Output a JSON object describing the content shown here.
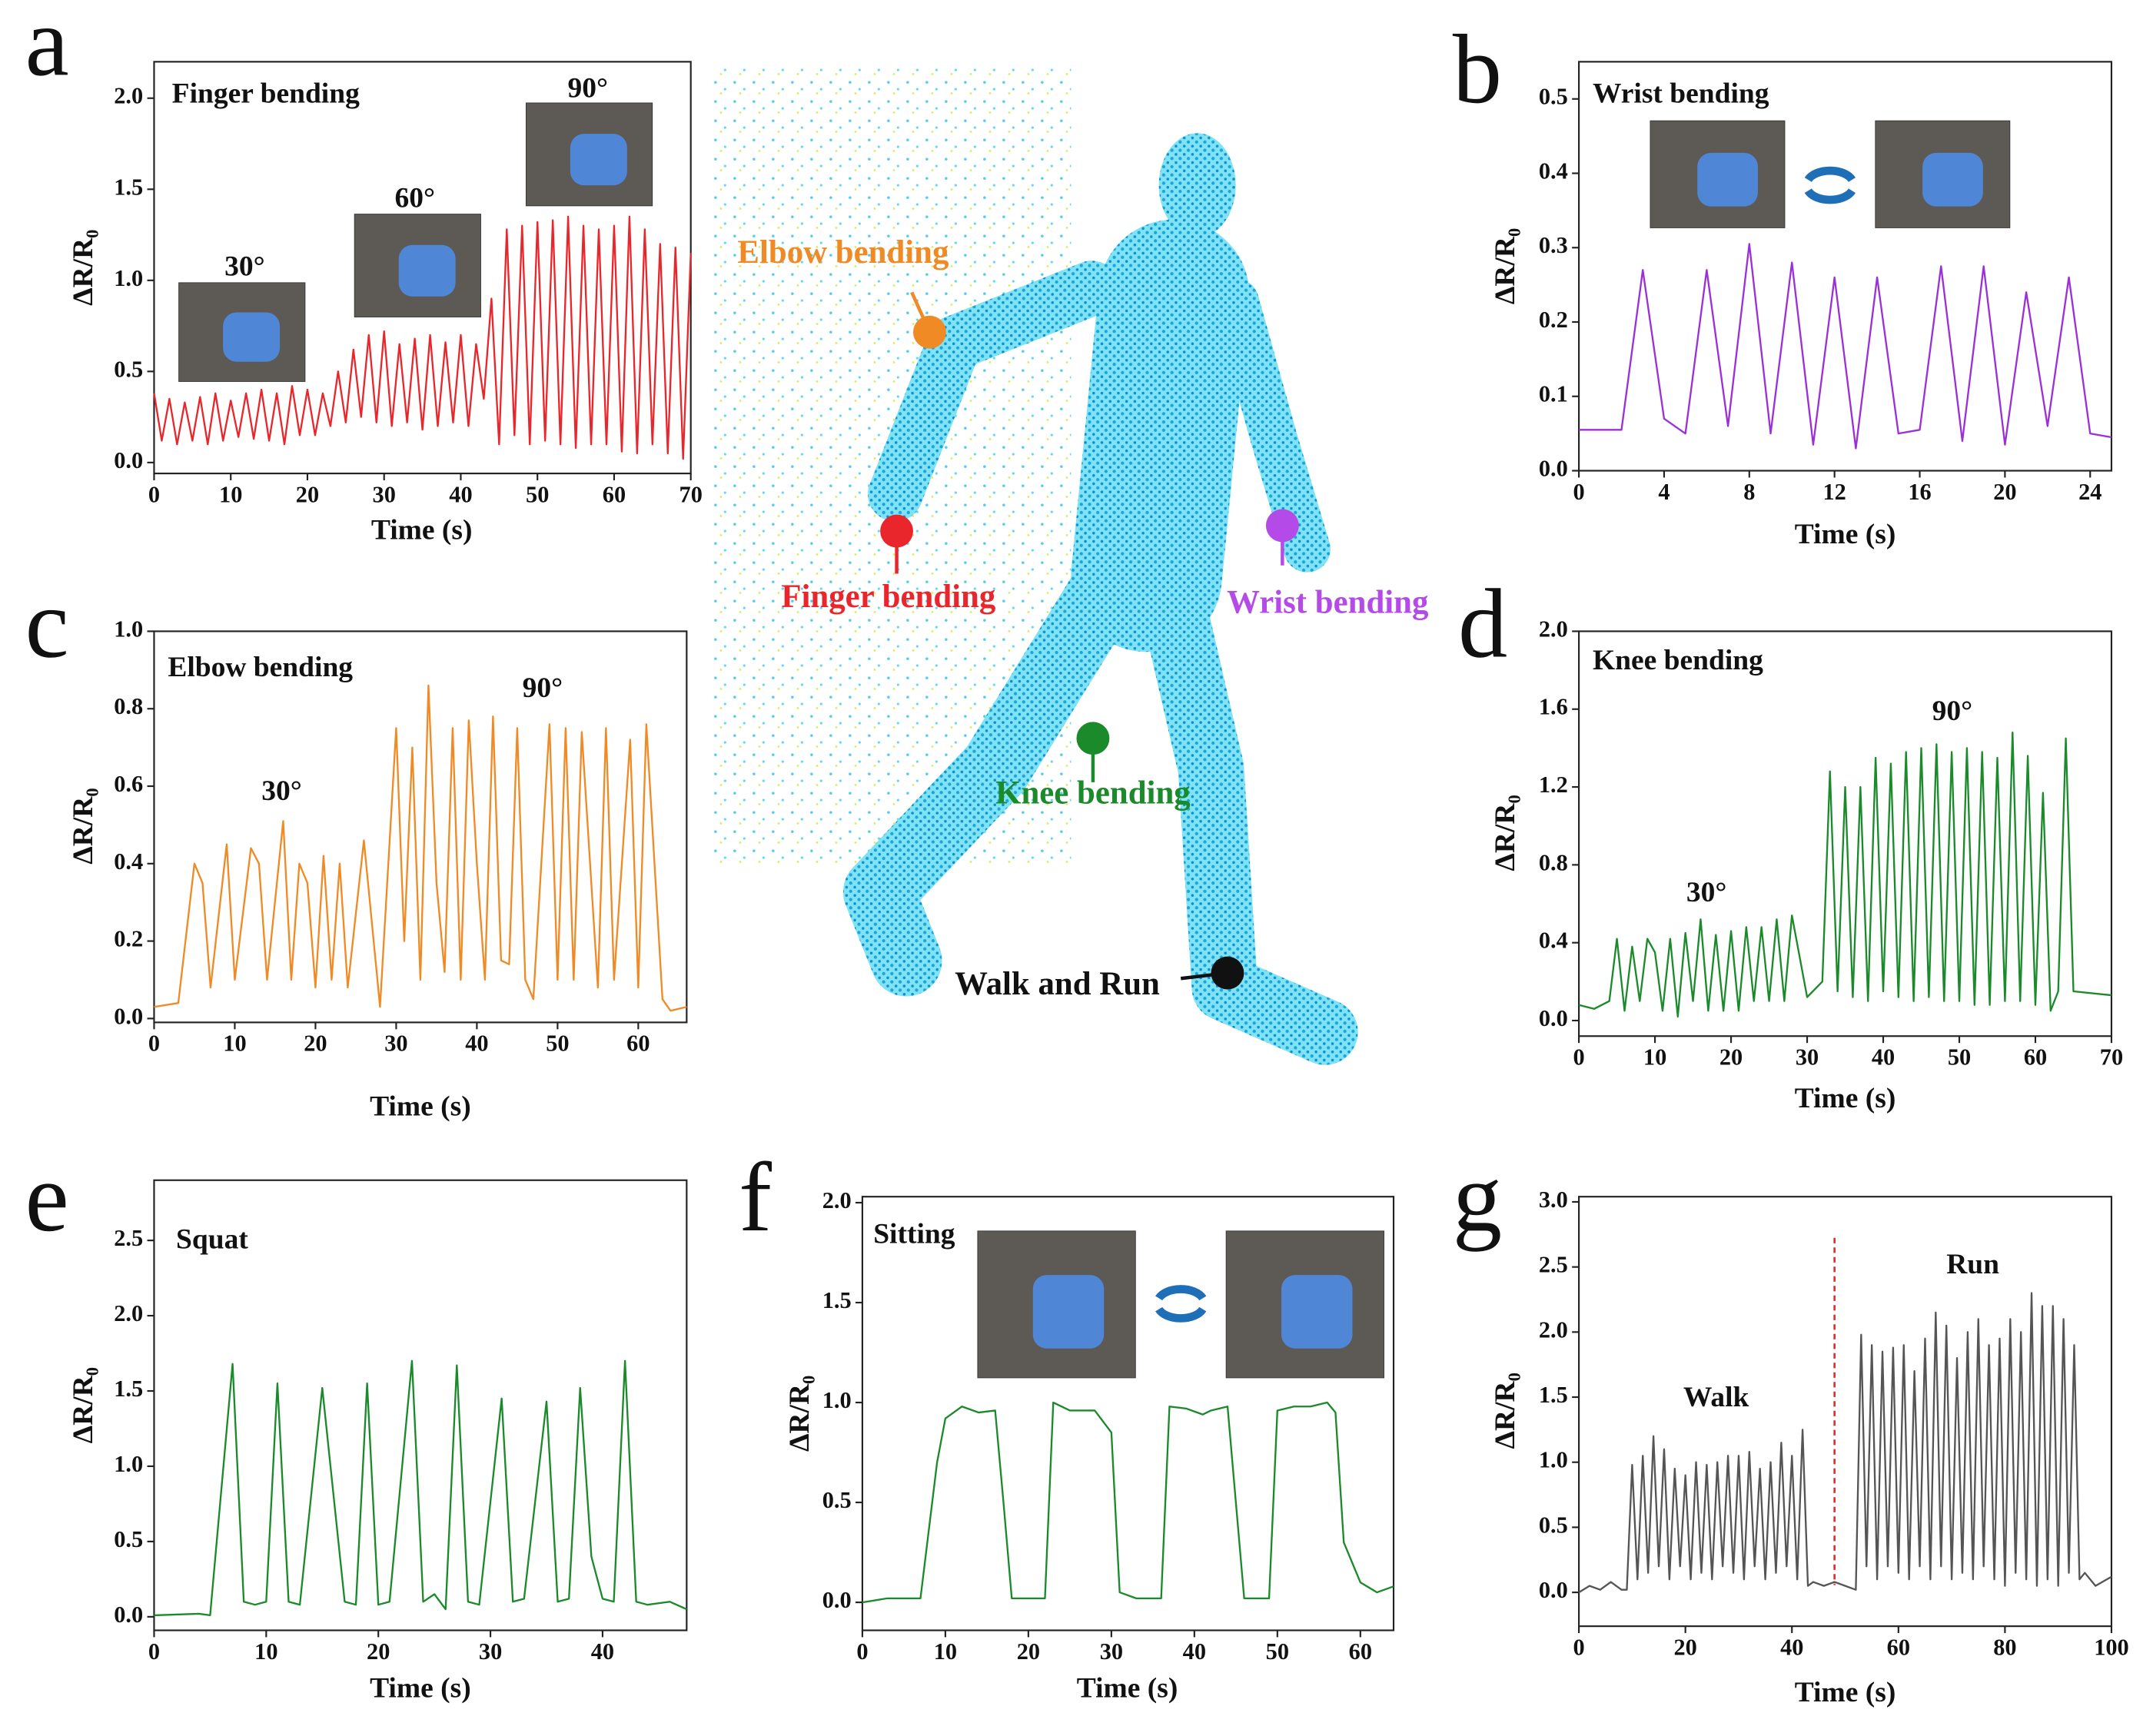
{
  "chart_data": [
    {
      "type": "line",
      "panel": "a",
      "title": "Finger bending",
      "annotations": [
        "30°",
        "60°",
        "90°"
      ],
      "x_label": "Time (s)",
      "y_label": "ΔR/R₀",
      "color": "#e8262b",
      "x": [
        0,
        1,
        2,
        3,
        4,
        5,
        6,
        7,
        8,
        9,
        10,
        11,
        12,
        13,
        14,
        15,
        16,
        17,
        18,
        19,
        20,
        21,
        22,
        23,
        24,
        25,
        26,
        27,
        28,
        29,
        30,
        31,
        32,
        33,
        34,
        35,
        36,
        37,
        38,
        39,
        40,
        41,
        42,
        43,
        44,
        45,
        46,
        47,
        48,
        49,
        50,
        51,
        52,
        53,
        54,
        55,
        56,
        57,
        58,
        59,
        60,
        61,
        62,
        63,
        64,
        65,
        66,
        67,
        68,
        69,
        70
      ],
      "values": [
        0.38,
        0.12,
        0.35,
        0.1,
        0.33,
        0.12,
        0.36,
        0.1,
        0.38,
        0.12,
        0.34,
        0.14,
        0.38,
        0.13,
        0.4,
        0.12,
        0.38,
        0.1,
        0.42,
        0.15,
        0.4,
        0.15,
        0.38,
        0.2,
        0.5,
        0.22,
        0.62,
        0.25,
        0.7,
        0.22,
        0.72,
        0.2,
        0.65,
        0.22,
        0.68,
        0.18,
        0.7,
        0.2,
        0.66,
        0.22,
        0.7,
        0.2,
        0.65,
        0.35,
        0.9,
        0.1,
        1.28,
        0.15,
        1.3,
        0.1,
        1.32,
        0.12,
        1.33,
        0.1,
        1.35,
        0.08,
        1.3,
        0.1,
        1.28,
        0.1,
        1.3,
        0.06,
        1.35,
        0.05,
        1.28,
        0.1,
        1.2,
        0.05,
        1.18,
        0.02,
        1.15
      ],
      "xlim": [
        0,
        70
      ],
      "ylim": [
        -0.06,
        2.2
      ],
      "xticks": [
        0,
        10,
        20,
        30,
        40,
        50,
        60,
        70
      ],
      "yticks": [
        {
          "value": 0,
          "label": "0.0"
        },
        0.5,
        {
          "value": 1,
          "label": "1.0"
        },
        1.5,
        {
          "value": 2,
          "label": "2.0"
        }
      ]
    },
    {
      "type": "line",
      "panel": "b",
      "title": "Wrist bending",
      "annotations": [],
      "x_label": "Time (s)",
      "y_label": "ΔR/R₀",
      "color": "#9b30d9",
      "x": [
        0,
        2,
        3,
        4,
        5,
        6,
        7,
        8,
        9,
        10,
        11,
        12,
        13,
        14,
        15,
        16,
        17,
        18,
        19,
        20,
        21,
        22,
        23,
        24,
        25
      ],
      "values": [
        0.055,
        0.055,
        0.27,
        0.07,
        0.05,
        0.27,
        0.06,
        0.305,
        0.05,
        0.28,
        0.035,
        0.26,
        0.03,
        0.26,
        0.05,
        0.055,
        0.275,
        0.04,
        0.275,
        0.035,
        0.24,
        0.06,
        0.26,
        0.05,
        0.045
      ],
      "xlim": [
        0,
        25
      ],
      "ylim": [
        0,
        0.55
      ],
      "xticks": [
        0,
        4,
        8,
        12,
        16,
        20,
        24
      ],
      "yticks": [
        {
          "value": 0,
          "label": "0.0"
        },
        0.1,
        0.2,
        0.3,
        0.4,
        0.5
      ]
    },
    {
      "type": "line",
      "panel": "c",
      "title": "Elbow bending",
      "annotations": [
        "30°",
        "90°"
      ],
      "x_label": "Time (s)",
      "y_label": "ΔR/R₀",
      "color": "#f08a24",
      "x": [
        0,
        3,
        5,
        6,
        7,
        9,
        10,
        12,
        13,
        14,
        16,
        17,
        18,
        19,
        20,
        21,
        22,
        23,
        24,
        26,
        28,
        30,
        31,
        32,
        33,
        34,
        35,
        36,
        37,
        38,
        39,
        40,
        41,
        42,
        43,
        44,
        45,
        46,
        47,
        49,
        50,
        51,
        52,
        53,
        55,
        56,
        57,
        59,
        60,
        61,
        63,
        64,
        66
      ],
      "values": [
        0.03,
        0.04,
        0.4,
        0.35,
        0.08,
        0.45,
        0.1,
        0.44,
        0.4,
        0.1,
        0.51,
        0.1,
        0.4,
        0.35,
        0.08,
        0.42,
        0.1,
        0.4,
        0.08,
        0.46,
        0.03,
        0.75,
        0.2,
        0.7,
        0.1,
        0.86,
        0.35,
        0.12,
        0.75,
        0.1,
        0.77,
        0.4,
        0.1,
        0.78,
        0.15,
        0.14,
        0.75,
        0.1,
        0.05,
        0.76,
        0.1,
        0.75,
        0.1,
        0.74,
        0.08,
        0.75,
        0.1,
        0.72,
        0.08,
        0.76,
        0.05,
        0.02,
        0.03
      ],
      "xlim": [
        0,
        66
      ],
      "ylim": [
        -0.01,
        1.0
      ],
      "xticks": [
        0,
        10,
        20,
        30,
        40,
        50,
        60
      ],
      "yticks": [
        {
          "value": 0,
          "label": "0.0"
        },
        0.2,
        0.4,
        0.6,
        0.8,
        {
          "value": 1,
          "label": "1.0"
        }
      ]
    },
    {
      "type": "line",
      "panel": "d",
      "title": "Knee bending",
      "annotations": [
        "30°",
        "90°"
      ],
      "x_label": "Time (s)",
      "y_label": "ΔR/R₀",
      "color": "#1a8a2a",
      "x": [
        0,
        2,
        4,
        5,
        6,
        7,
        8,
        9,
        10,
        11,
        12,
        13,
        14,
        15,
        16,
        17,
        18,
        19,
        20,
        21,
        22,
        23,
        24,
        25,
        26,
        27,
        28,
        30,
        32,
        33,
        34,
        35,
        36,
        37,
        38,
        39,
        40,
        41,
        42,
        43,
        44,
        45,
        46,
        47,
        48,
        49,
        50,
        51,
        52,
        53,
        54,
        55,
        56,
        57,
        58,
        59,
        60,
        61,
        62,
        63,
        64,
        65,
        70
      ],
      "values": [
        0.08,
        0.06,
        0.1,
        0.42,
        0.05,
        0.38,
        0.1,
        0.42,
        0.35,
        0.05,
        0.42,
        0.02,
        0.45,
        0.1,
        0.52,
        0.05,
        0.44,
        0.05,
        0.46,
        0.05,
        0.48,
        0.1,
        0.48,
        0.1,
        0.52,
        0.1,
        0.54,
        0.12,
        0.2,
        1.28,
        0.15,
        1.2,
        0.12,
        1.2,
        0.1,
        1.35,
        0.15,
        1.32,
        0.12,
        1.38,
        0.1,
        1.4,
        0.12,
        1.42,
        0.1,
        1.38,
        0.1,
        1.4,
        0.08,
        1.38,
        0.08,
        1.35,
        0.1,
        1.48,
        0.1,
        1.36,
        0.08,
        1.17,
        0.05,
        0.15,
        1.45,
        0.15,
        0.13
      ],
      "xlim": [
        0,
        70
      ],
      "ylim": [
        -0.08,
        2.0
      ],
      "xticks": [
        0,
        10,
        20,
        30,
        40,
        50,
        60,
        70
      ],
      "yticks": [
        {
          "value": 0,
          "label": "0.0"
        },
        0.4,
        0.8,
        1.2,
        1.6,
        {
          "value": 2,
          "label": "2.0"
        }
      ]
    },
    {
      "type": "line",
      "panel": "e",
      "title": "Squat",
      "annotations": [],
      "x_label": "Time (s)",
      "y_label": "ΔR/R₀",
      "color": "#1a8a2a",
      "x": [
        0,
        4,
        5,
        7,
        8,
        9,
        10,
        11,
        12,
        13,
        15,
        17,
        18,
        19,
        20,
        21,
        23,
        24,
        25,
        26,
        27,
        28,
        29,
        31,
        32,
        33,
        35,
        36,
        37,
        38,
        39,
        40,
        41,
        42,
        43,
        44,
        46,
        47.5
      ],
      "values": [
        0.01,
        0.02,
        0.01,
        1.68,
        0.1,
        0.08,
        0.1,
        1.55,
        0.1,
        0.08,
        1.52,
        0.1,
        0.08,
        1.55,
        0.08,
        0.1,
        1.7,
        0.1,
        0.15,
        0.05,
        1.67,
        0.1,
        0.08,
        1.45,
        0.1,
        0.12,
        1.43,
        0.1,
        0.12,
        1.52,
        0.4,
        0.12,
        0.1,
        1.7,
        0.1,
        0.08,
        0.1,
        0.05
      ],
      "xlim": [
        0,
        47.5
      ],
      "ylim": [
        -0.09,
        2.9
      ],
      "xticks": [
        0,
        10,
        20,
        30,
        40
      ],
      "yticks": [
        {
          "value": 0,
          "label": "0.0"
        },
        0.5,
        {
          "value": 1,
          "label": "1.0"
        },
        1.5,
        {
          "value": 2,
          "label": "2.0"
        },
        2.5
      ]
    },
    {
      "type": "line",
      "panel": "f",
      "title": "Sitting",
      "annotations": [],
      "x_label": "Time (s)",
      "y_label": "ΔR/R₀",
      "color": "#1a8a2a",
      "x": [
        0,
        3,
        7,
        9,
        10,
        12,
        14,
        16,
        17,
        18,
        20,
        22,
        23,
        25,
        28,
        30,
        31,
        33,
        36,
        37,
        39,
        41,
        42,
        44,
        45,
        46,
        49,
        50,
        52,
        54,
        56,
        57,
        58,
        60,
        62,
        64
      ],
      "values": [
        0,
        0.02,
        0.02,
        0.7,
        0.92,
        0.98,
        0.95,
        0.96,
        0.5,
        0.02,
        0.02,
        0.02,
        1.0,
        0.96,
        0.96,
        0.85,
        0.05,
        0.02,
        0.02,
        0.98,
        0.97,
        0.94,
        0.96,
        0.98,
        0.5,
        0.02,
        0.02,
        0.96,
        0.98,
        0.98,
        1.0,
        0.95,
        0.3,
        0.1,
        0.05,
        0.08
      ],
      "xlim": [
        0,
        64
      ],
      "ylim": [
        -0.14,
        2.03
      ],
      "xticks": [
        0,
        10,
        20,
        30,
        40,
        50,
        60
      ],
      "yticks": [
        {
          "value": 0,
          "label": "0.0"
        },
        0.5,
        {
          "value": 1,
          "label": "1.0"
        },
        1.5,
        {
          "value": 2,
          "label": "2.0"
        }
      ]
    },
    {
      "type": "line",
      "panel": "g",
      "title": "",
      "annotations": [
        "Walk",
        "Run"
      ],
      "x_label": "Time (s)",
      "y_label": "ΔR/R₀",
      "color": "#555555",
      "divider_x": 48,
      "divider_color": "#e03030",
      "x": [
        0,
        2,
        4,
        6,
        8,
        9,
        10,
        11,
        12,
        13,
        14,
        15,
        16,
        17,
        18,
        19,
        20,
        21,
        22,
        23,
        24,
        25,
        26,
        27,
        28,
        29,
        30,
        31,
        32,
        33,
        34,
        35,
        36,
        37,
        38,
        39,
        40,
        41,
        42,
        43,
        44,
        46,
        48,
        50,
        52,
        53,
        54,
        55,
        56,
        57,
        58,
        59,
        60,
        61,
        62,
        63,
        64,
        65,
        66,
        67,
        68,
        69,
        70,
        71,
        72,
        73,
        74,
        75,
        76,
        77,
        78,
        79,
        80,
        81,
        82,
        83,
        84,
        85,
        86,
        87,
        88,
        89,
        90,
        91,
        92,
        93,
        94,
        95,
        97,
        100
      ],
      "values": [
        0,
        0.05,
        0.02,
        0.08,
        0.02,
        0.02,
        0.98,
        0.1,
        1.05,
        0.15,
        1.2,
        0.2,
        1.1,
        0.1,
        0.95,
        0.2,
        0.9,
        0.1,
        1.0,
        0.15,
        0.98,
        0.1,
        1.0,
        0.2,
        1.05,
        0.15,
        1.05,
        0.1,
        1.08,
        0.2,
        0.95,
        0.1,
        1.0,
        0.15,
        1.15,
        0.2,
        1.05,
        0.1,
        1.25,
        0.05,
        0.08,
        0.05,
        0.08,
        0.05,
        0.02,
        1.98,
        0.2,
        1.9,
        0.1,
        1.85,
        0.2,
        1.88,
        0.15,
        1.9,
        0.1,
        1.7,
        0.2,
        1.95,
        0.1,
        2.15,
        0.2,
        2.05,
        0.1,
        1.8,
        0.15,
        2.0,
        0.1,
        2.1,
        0.2,
        1.9,
        0.1,
        1.95,
        0.05,
        2.1,
        0.15,
        2.0,
        0.1,
        2.3,
        0.05,
        2.2,
        0.1,
        2.2,
        0.05,
        2.1,
        0.15,
        1.9,
        0.1,
        0.15,
        0.05,
        0.12
      ],
      "xlim": [
        0,
        100
      ],
      "ylim": [
        -0.26,
        3.04
      ],
      "xticks": [
        0,
        20,
        40,
        60,
        80,
        100
      ],
      "yticks": [
        {
          "value": 0,
          "label": "0.0"
        },
        0.5,
        {
          "value": 1,
          "label": "1.0"
        },
        1.5,
        {
          "value": 2,
          "label": "2.0"
        },
        2.5,
        {
          "value": 3,
          "label": "3.0"
        }
      ]
    }
  ],
  "body_labels": [
    {
      "text": "Elbow bending",
      "color": "#f08a24"
    },
    {
      "text": "Finger bending",
      "color": "#e8262b"
    },
    {
      "text": "Wrist bending",
      "color": "#b44be8"
    },
    {
      "text": "Knee bending",
      "color": "#1a8a2a"
    },
    {
      "text": "Walk and Run",
      "color": "#111111"
    }
  ]
}
